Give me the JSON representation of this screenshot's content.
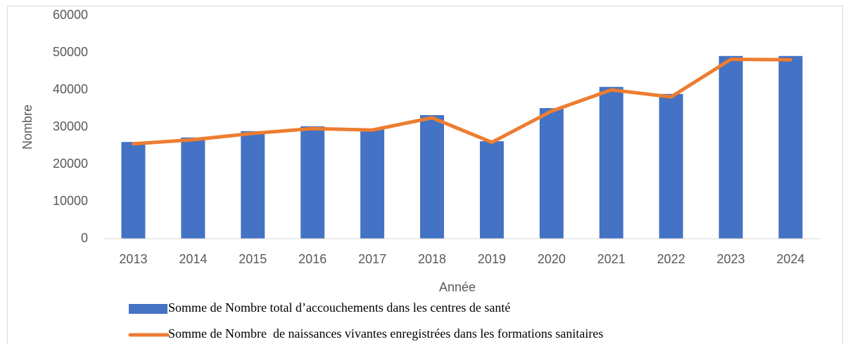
{
  "chart_data": {
    "type": "combo",
    "x_label": "Année",
    "y_label": "Nombre",
    "categories": [
      "2013",
      "2014",
      "2015",
      "2016",
      "2017",
      "2018",
      "2019",
      "2020",
      "2021",
      "2022",
      "2023",
      "2024"
    ],
    "series": [
      {
        "name": "Somme de Nombre total d’accouchements dans les centres de santé",
        "type": "bar",
        "color": "#4472c4",
        "values": [
          26000,
          27200,
          28900,
          30200,
          29600,
          33200,
          26200,
          35100,
          40800,
          38900,
          49100,
          49100
        ]
      },
      {
        "name": "Somme de Nombre  de naissances vivantes enregistrées dans les formations sanitaires",
        "type": "line",
        "color": "#ed7d31",
        "values": [
          25500,
          26600,
          28300,
          29600,
          29200,
          32500,
          25900,
          34300,
          40000,
          38100,
          48200,
          48100
        ]
      }
    ],
    "ylim": [
      0,
      60000
    ],
    "yticks": [
      0,
      10000,
      20000,
      30000,
      40000,
      50000,
      60000
    ],
    "grid": false
  }
}
